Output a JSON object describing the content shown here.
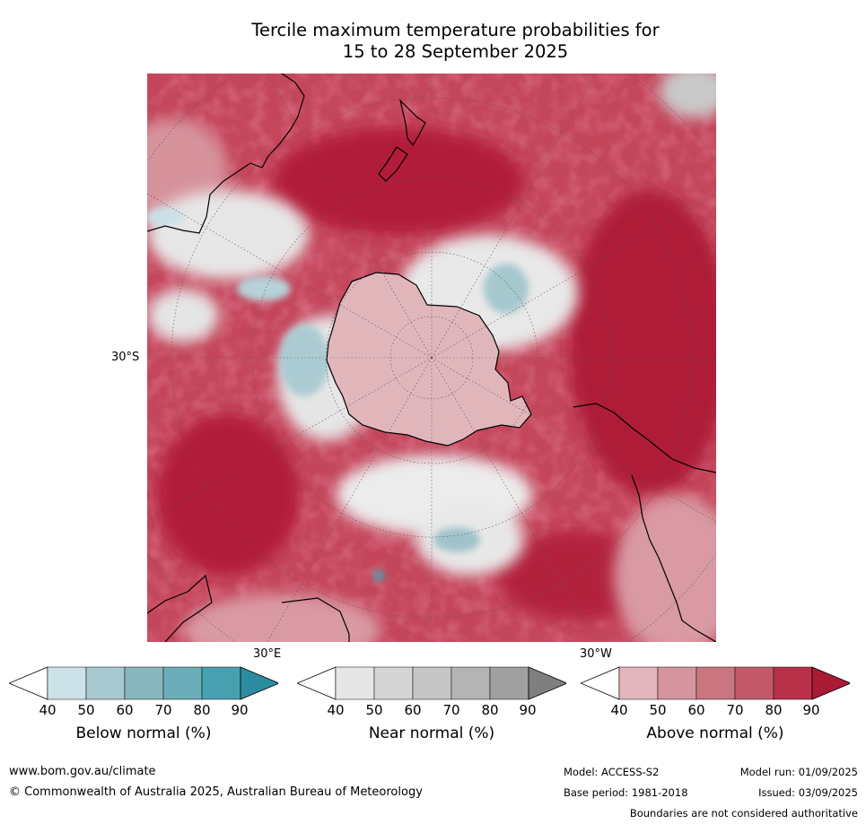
{
  "title_line1": "Tercile maximum temperature probabilities for",
  "title_line2": "15 to 28 September 2025",
  "map": {
    "projection": "south-polar-stereographic",
    "lat_label": "30°S",
    "lon_label_east": "30°E",
    "lon_label_west": "30°W"
  },
  "legend": {
    "ticks": [
      "40",
      "50",
      "60",
      "70",
      "80",
      "90"
    ],
    "below": {
      "label": "Below normal (%)",
      "colors": [
        "#ffffff",
        "#cde2e8",
        "#a7c8ce",
        "#8ab7be",
        "#6badb8",
        "#47a0b0",
        "#2b8ca0"
      ]
    },
    "near": {
      "label": "Near normal (%)",
      "colors": [
        "#ffffff",
        "#e6e6e6",
        "#d5d5d5",
        "#c6c6c6",
        "#b4b4b4",
        "#a0a0a0",
        "#7f7f7f"
      ]
    },
    "above": {
      "label": "Above normal (%)",
      "colors": [
        "#ffffff",
        "#e2b6bc",
        "#d5959e",
        "#c97681",
        "#c25a69",
        "#b93148",
        "#ab1a35"
      ]
    }
  },
  "footer": {
    "website": "www.bom.gov.au/climate",
    "copyright": "© Commonwealth of Australia 2025, Australian Bureau of Meteorology",
    "model": "Model: ACCESS-S2",
    "model_run": "Model run: 01/09/2025",
    "base_period": "Base period: 1981-2018",
    "issued": "Issued: 03/09/2025",
    "boundaries": "Boundaries are not considered authoritative"
  }
}
